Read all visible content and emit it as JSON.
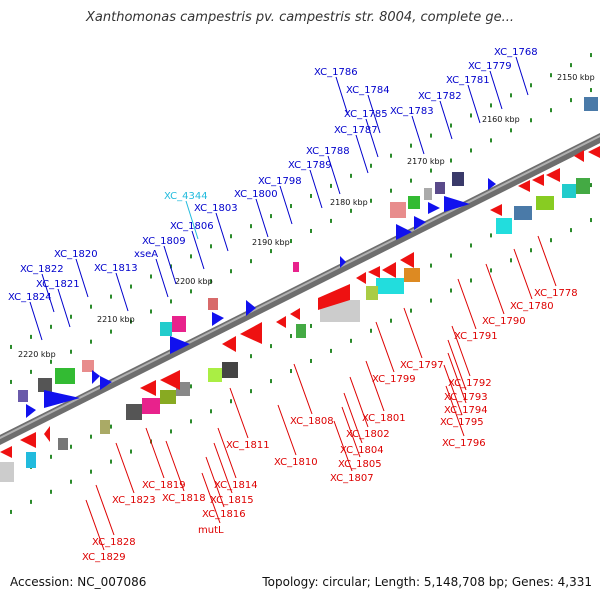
{
  "title": "Xanthomonas campestris pv. campestris str. 8004, complete ge...",
  "accession": "Accession: NC_007086",
  "topology": "Topology: circular; Length: 5,148,708 bp; Genes: 4,331",
  "colors": {
    "forward_label": "#0000cc",
    "reverse_label": "#dd0000",
    "highlight_label": "#22bbdd",
    "backbone": "#888888",
    "tick": "#2a8a2a"
  },
  "kbp_ticks": [
    "2150 kbp",
    "2160 kbp",
    "2170 kbp",
    "2180 kbp",
    "2190 kbp",
    "2200 kbp",
    "2210 kbp",
    "2220 kbp"
  ],
  "forward_genes": [
    "XC_1768",
    "XC_1779",
    "XC_1781",
    "XC_1782",
    "XC_1783",
    "XC_1784",
    "XC_1785",
    "XC_1786",
    "XC_1787",
    "XC_1788",
    "XC_1789",
    "XC_1798",
    "XC_1800",
    "XC_4344",
    "XC_1803",
    "XC_1806",
    "XC_1809",
    "xseA",
    "XC_1813",
    "XC_1820",
    "XC_1822",
    "XC_1821",
    "XC_1824"
  ],
  "reverse_genes": [
    "XC_1778",
    "XC_1780",
    "XC_1790",
    "XC_1791",
    "XC_1797",
    "XC_1799",
    "XC_1792",
    "XC_1793",
    "XC_1794",
    "XC_1795",
    "XC_1796",
    "XC_1801",
    "XC_1802",
    "XC_1804",
    "XC_1805",
    "XC_1807",
    "XC_1808",
    "XC_1810",
    "XC_1811",
    "XC_1814",
    "XC_1815",
    "XC_1816",
    "mutL",
    "XC_1818",
    "XC_1819",
    "XC_1823",
    "XC_1828",
    "XC_1829"
  ]
}
